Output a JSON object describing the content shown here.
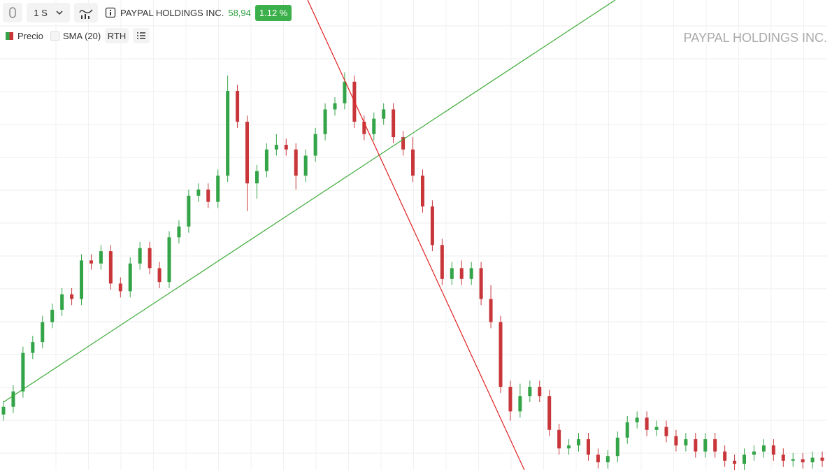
{
  "toolbar": {
    "interval": "1 S",
    "symbol": "PAYPAL HOLDINGS INC.",
    "price": "58,94",
    "change": "1.12 %"
  },
  "legend": {
    "price": "Precio",
    "sma": "SMA (20)",
    "rth": "RTH"
  },
  "chart_data": {
    "type": "candlestick",
    "watermark": "PAYPAL HOLDINGS INC.",
    "up_color": "#33a447",
    "down_color": "#c8363a",
    "ylim": [
      54,
      359
    ],
    "candles": [
      [
        90,
        99,
        86,
        95
      ],
      [
        95,
        109,
        91,
        105
      ],
      [
        105,
        134,
        101,
        130
      ],
      [
        130,
        141,
        126,
        137
      ],
      [
        137,
        154,
        133,
        150
      ],
      [
        150,
        162,
        146,
        158
      ],
      [
        158,
        172,
        154,
        168
      ],
      [
        168,
        172,
        161,
        165
      ],
      [
        165,
        194,
        161,
        190
      ],
      [
        190,
        194,
        184,
        188
      ],
      [
        188,
        200,
        184,
        196
      ],
      [
        196,
        200,
        171,
        175
      ],
      [
        175,
        179,
        166,
        170
      ],
      [
        170,
        192,
        166,
        188
      ],
      [
        188,
        202,
        184,
        198
      ],
      [
        198,
        202,
        181,
        185
      ],
      [
        185,
        189,
        172,
        176
      ],
      [
        176,
        209,
        172,
        205
      ],
      [
        205,
        216,
        201,
        212
      ],
      [
        212,
        236,
        208,
        232
      ],
      [
        232,
        240,
        228,
        236
      ],
      [
        236,
        240,
        224,
        228
      ],
      [
        228,
        249,
        224,
        245
      ],
      [
        245,
        310,
        241,
        300
      ],
      [
        300,
        304,
        276,
        280
      ],
      [
        280,
        284,
        222,
        240
      ],
      [
        240,
        252,
        230,
        248
      ],
      [
        248,
        266,
        244,
        262
      ],
      [
        262,
        272,
        258,
        265
      ],
      [
        265,
        269,
        258,
        262
      ],
      [
        262,
        266,
        236,
        245
      ],
      [
        245,
        262,
        241,
        258
      ],
      [
        258,
        276,
        254,
        272
      ],
      [
        272,
        292,
        268,
        288
      ],
      [
        288,
        296,
        284,
        292
      ],
      [
        292,
        312,
        288,
        306
      ],
      [
        306,
        310,
        276,
        280
      ],
      [
        280,
        284,
        268,
        272
      ],
      [
        272,
        286,
        268,
        282
      ],
      [
        282,
        292,
        278,
        288
      ],
      [
        288,
        292,
        266,
        270
      ],
      [
        270,
        274,
        258,
        262
      ],
      [
        262,
        270,
        241,
        245
      ],
      [
        245,
        249,
        221,
        225
      ],
      [
        225,
        229,
        196,
        200
      ],
      [
        200,
        204,
        174,
        178
      ],
      [
        178,
        189,
        174,
        185
      ],
      [
        185,
        190,
        174,
        178
      ],
      [
        178,
        189,
        174,
        185
      ],
      [
        185,
        189,
        161,
        165
      ],
      [
        165,
        174,
        146,
        150
      ],
      [
        150,
        154,
        104,
        108
      ],
      [
        108,
        112,
        86,
        92
      ],
      [
        92,
        110,
        88,
        102
      ],
      [
        102,
        112,
        98,
        108
      ],
      [
        108,
        112,
        98,
        102
      ],
      [
        102,
        106,
        76,
        80
      ],
      [
        80,
        84,
        64,
        68
      ],
      [
        68,
        74,
        64,
        70
      ],
      [
        70,
        78,
        66,
        74
      ],
      [
        74,
        78,
        60,
        64
      ],
      [
        64,
        68,
        55,
        59
      ],
      [
        59,
        67,
        55,
        63
      ],
      [
        63,
        79,
        59,
        75
      ],
      [
        75,
        89,
        71,
        85
      ],
      [
        85,
        92,
        81,
        88
      ],
      [
        88,
        92,
        76,
        80
      ],
      [
        80,
        86,
        76,
        82
      ],
      [
        82,
        86,
        72,
        76
      ],
      [
        76,
        80,
        66,
        70
      ],
      [
        70,
        78,
        66,
        74
      ],
      [
        74,
        78,
        62,
        66
      ],
      [
        66,
        78,
        62,
        74
      ],
      [
        74,
        78,
        62,
        66
      ],
      [
        66,
        70,
        56,
        60
      ],
      [
        60,
        64,
        54,
        58
      ],
      [
        58,
        68,
        54,
        64
      ],
      [
        64,
        70,
        60,
        66
      ],
      [
        66,
        74,
        62,
        70
      ],
      [
        70,
        74,
        60,
        64
      ],
      [
        64,
        68,
        56,
        60
      ],
      [
        60,
        65,
        56,
        61
      ],
      [
        61,
        65,
        55,
        59
      ],
      [
        59,
        66,
        55,
        62
      ],
      [
        62,
        66,
        56,
        60
      ],
      [
        60,
        64,
        55,
        59
      ]
    ]
  }
}
